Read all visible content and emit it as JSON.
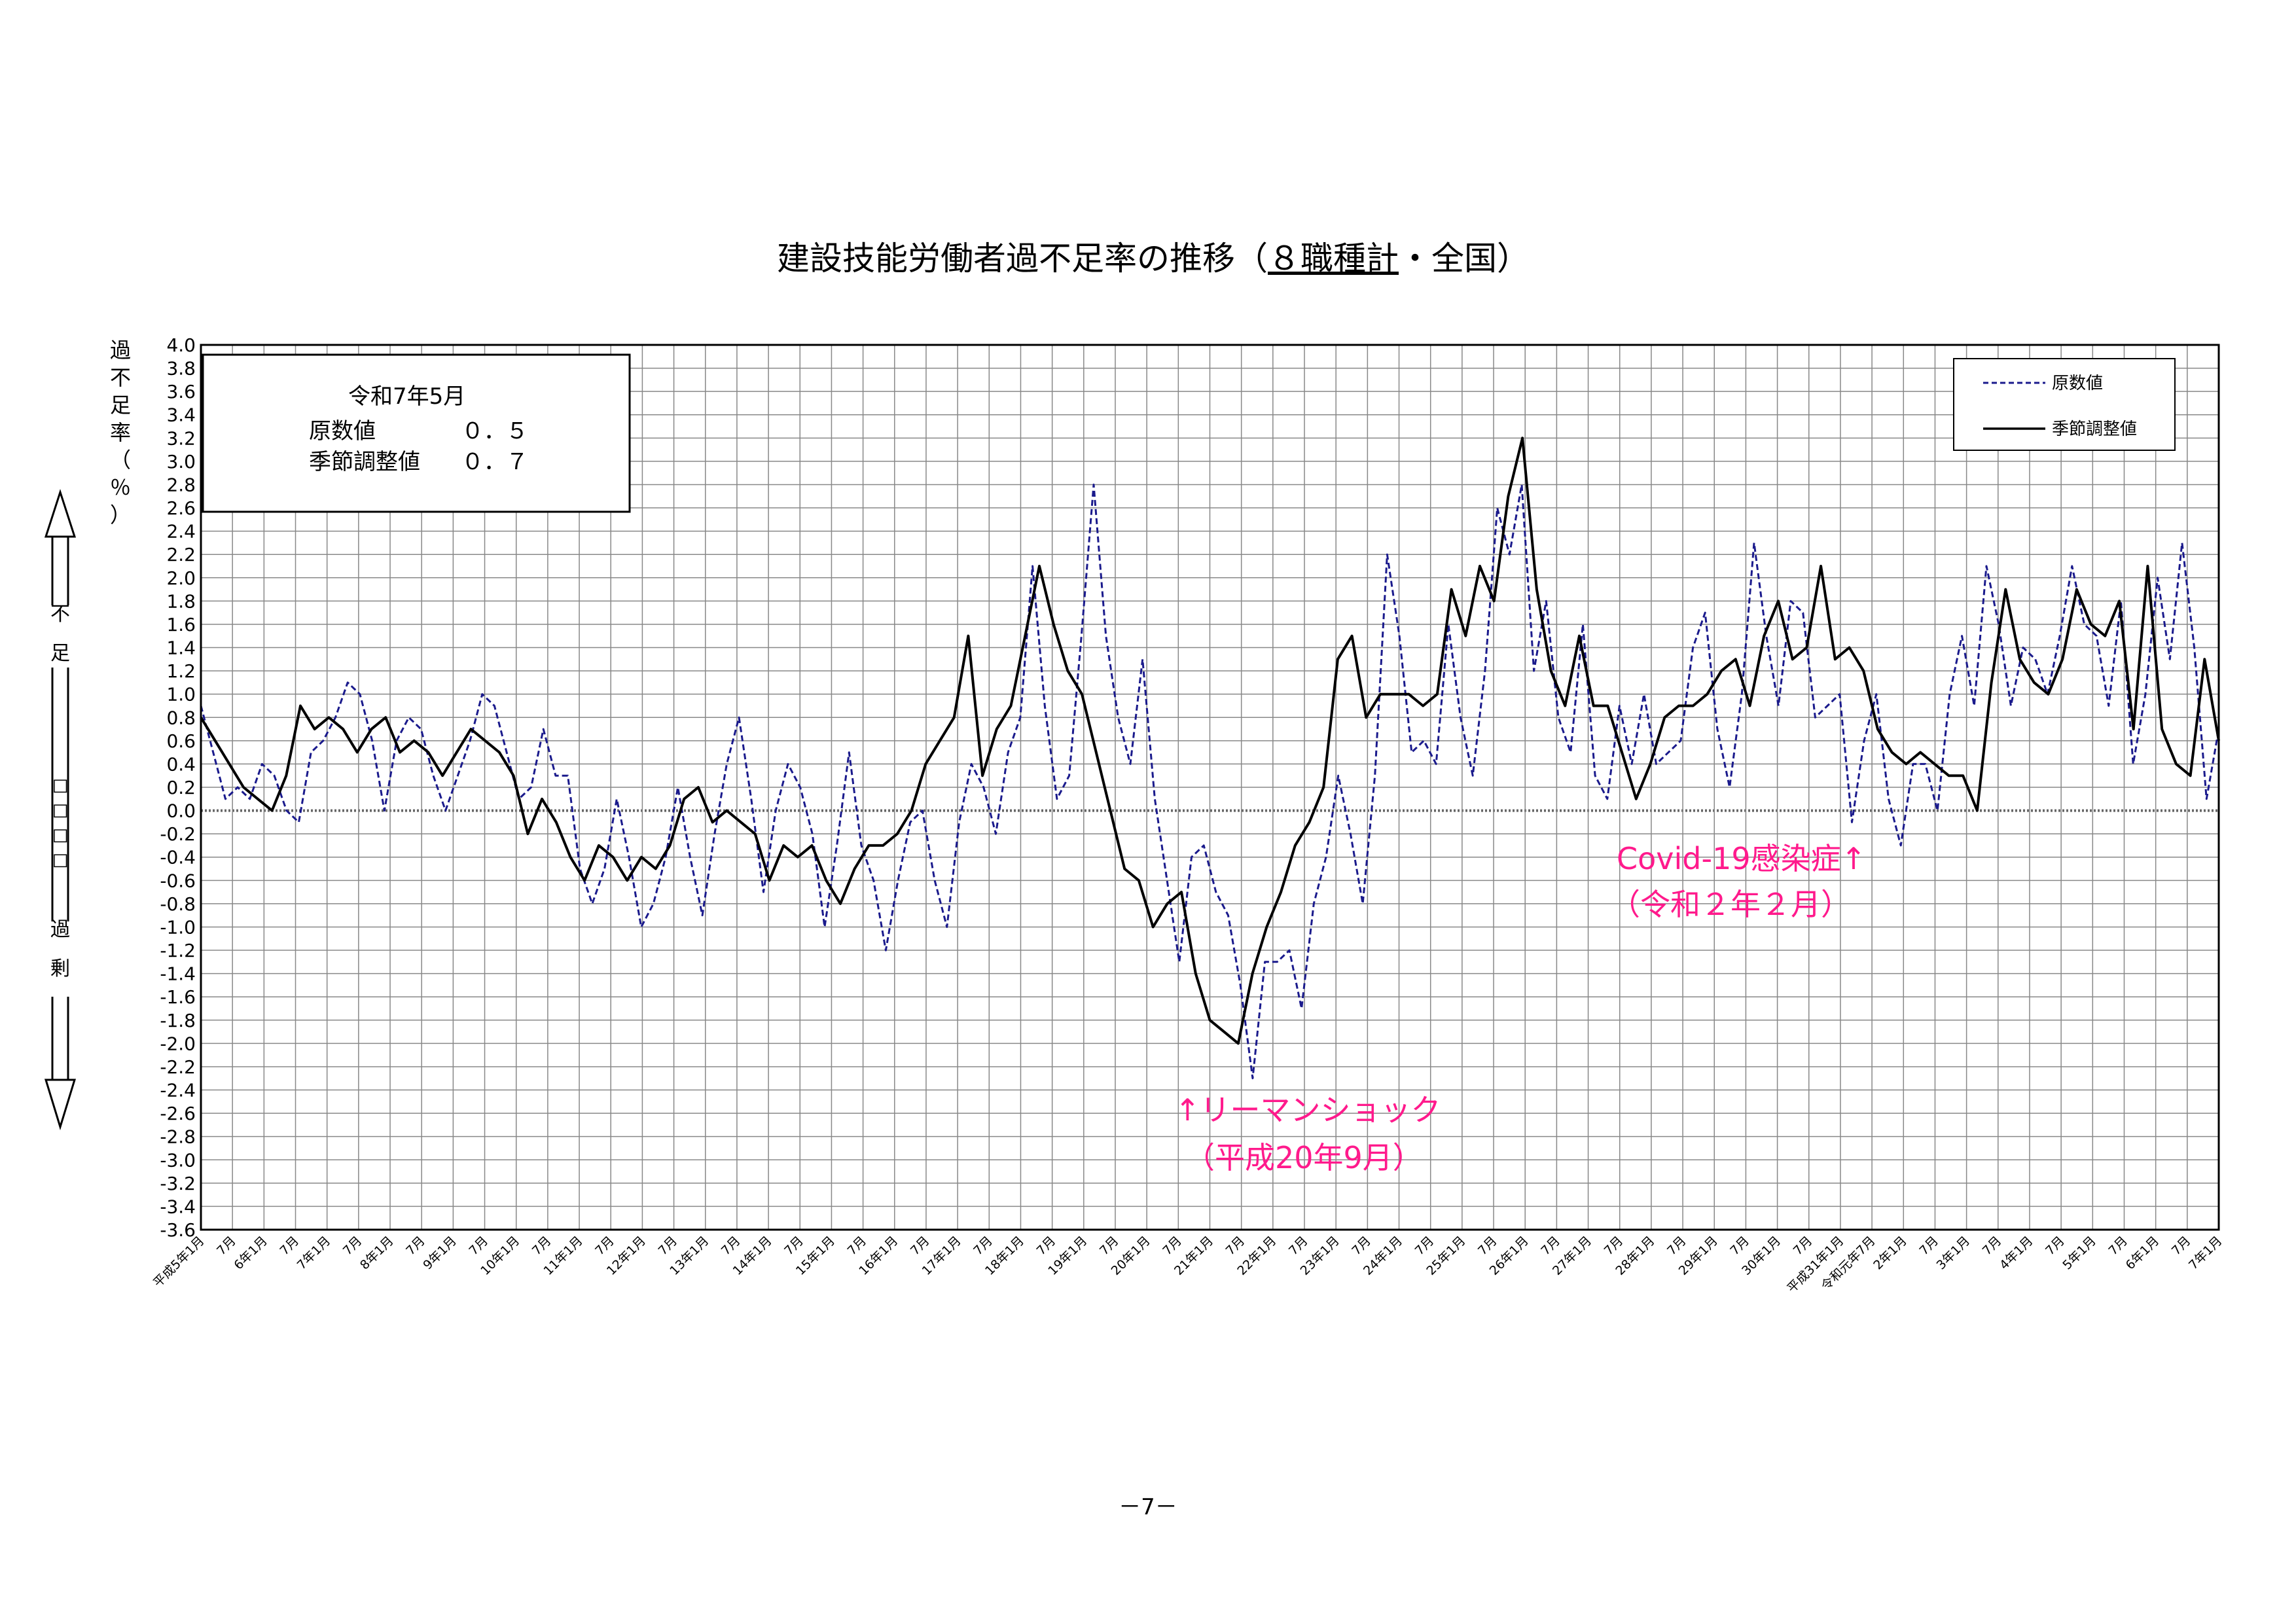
{
  "chart_data": {
    "type": "line",
    "title_prefix": "建設技能労働者過不足率の推移（",
    "title_underlined": "８職種計",
    "title_suffix": "・全国）",
    "ylabel": "過不足率（％）",
    "ylim": [
      -3.6,
      4.0
    ],
    "ytick_step": 0.2,
    "grid": true,
    "legend_position": "top-right",
    "side_label_top": "不足",
    "side_label_mid": "□□□□",
    "side_label_bottom": "過剰",
    "info_box": {
      "line1": "令和7年5月",
      "raw_label": "原数値",
      "raw_value": "０．５",
      "sa_label": "季節調整値",
      "sa_value": "０．７"
    },
    "annotations": {
      "lehman_line1": "↑リーマンショック",
      "lehman_line2": "（平成20年9月）",
      "covid_line1": "Covid-19感染症↑",
      "covid_line2": "（令和２年２月）"
    },
    "x_tick_labels": [
      "平成5年1月",
      "7月",
      "6年1月",
      "7月",
      "7年1月",
      "7月",
      "8年1月",
      "7月",
      "9年1月",
      "7月",
      "10年1月",
      "7月",
      "11年1月",
      "7月",
      "12年1月",
      "7月",
      "13年1月",
      "7月",
      "14年1月",
      "7月",
      "15年1月",
      "7月",
      "16年1月",
      "7月",
      "17年1月",
      "7月",
      "18年1月",
      "7月",
      "19年1月",
      "7月",
      "20年1月",
      "7月",
      "21年1月",
      "7月",
      "22年1月",
      "7月",
      "23年1月",
      "7月",
      "24年1月",
      "7月",
      "25年1月",
      "7月",
      "26年1月",
      "7月",
      "27年1月",
      "7月",
      "28年1月",
      "7月",
      "29年1月",
      "7月",
      "30年1月",
      "7月",
      "平成31年1月",
      "令和元年7月",
      "2年1月",
      "7月",
      "3年1月",
      "7月",
      "4年1月",
      "7月",
      "5年1月",
      "7月",
      "6年1月",
      "7月",
      "7年1月"
    ],
    "series": [
      {
        "name": "原数値",
        "color": "#1a1a8c",
        "style": "dashed",
        "anchors": [
          0.9,
          0.5,
          0.1,
          0.2,
          0.1,
          0.4,
          0.3,
          0.0,
          -0.1,
          0.5,
          0.6,
          0.8,
          1.1,
          1.0,
          0.6,
          0.0,
          0.6,
          0.8,
          0.7,
          0.3,
          0.0,
          0.3,
          0.6,
          1.0,
          0.9,
          0.5,
          0.1,
          0.2,
          0.7,
          0.3,
          0.3,
          -0.5,
          -0.8,
          -0.5,
          0.1,
          -0.4,
          -1.0,
          -0.8,
          -0.4,
          0.2,
          -0.4,
          -0.9,
          -0.2,
          0.4,
          0.8,
          0.1,
          -0.7,
          0.0,
          0.4,
          0.2,
          -0.2,
          -1.0,
          -0.3,
          0.5,
          -0.3,
          -0.6,
          -1.2,
          -0.6,
          -0.1,
          0.0,
          -0.6,
          -1.0,
          -0.1,
          0.4,
          0.2,
          -0.2,
          0.5,
          0.8,
          2.1,
          0.9,
          0.1,
          0.3,
          1.5,
          2.8,
          1.5,
          0.8,
          0.4,
          1.3,
          0.1,
          -0.6,
          -1.3,
          -0.4,
          -0.3,
          -0.7,
          -0.9,
          -1.5,
          -2.3,
          -1.3,
          -1.3,
          -1.2,
          -1.7,
          -0.8,
          -0.4,
          0.3,
          -0.2,
          -0.8,
          0.3,
          2.2,
          1.5,
          0.5,
          0.6,
          0.4,
          1.6,
          0.8,
          0.3,
          1.2,
          2.6,
          2.2,
          2.8,
          1.2,
          1.8,
          0.8,
          0.5,
          1.6,
          0.3,
          0.1,
          0.9,
          0.4,
          1.0,
          0.4,
          0.5,
          0.6,
          1.4,
          1.7,
          0.7,
          0.2,
          1.0,
          2.3,
          1.5,
          0.9,
          1.8,
          1.7,
          0.8,
          0.9,
          1.0,
          -0.1,
          0.6,
          1.0,
          0.1,
          -0.3,
          0.4,
          0.4,
          0.0,
          1.0,
          1.5,
          0.9,
          2.1,
          1.6,
          0.9,
          1.4,
          1.3,
          1.0,
          1.5,
          2.1,
          1.6,
          1.5,
          0.9,
          1.8,
          0.4,
          1.0,
          2.0,
          1.3,
          2.3,
          1.4,
          0.1,
          0.7
        ],
        "note": "原数値 (raw values, approx. monthly samples read from chart)"
      },
      {
        "name": "季節調整値",
        "color": "#000000",
        "style": "solid",
        "anchors": [
          0.8,
          0.6,
          0.4,
          0.2,
          0.1,
          0.0,
          0.3,
          0.9,
          0.7,
          0.8,
          0.7,
          0.5,
          0.7,
          0.8,
          0.5,
          0.6,
          0.5,
          0.3,
          0.5,
          0.7,
          0.6,
          0.5,
          0.3,
          -0.2,
          0.1,
          -0.1,
          -0.4,
          -0.6,
          -0.3,
          -0.4,
          -0.6,
          -0.4,
          -0.5,
          -0.3,
          0.1,
          0.2,
          -0.1,
          0.0,
          -0.1,
          -0.2,
          -0.6,
          -0.3,
          -0.4,
          -0.3,
          -0.6,
          -0.8,
          -0.5,
          -0.3,
          -0.3,
          -0.2,
          0.0,
          0.4,
          0.6,
          0.8,
          1.5,
          0.3,
          0.7,
          0.9,
          1.5,
          2.1,
          1.6,
          1.2,
          1.0,
          0.5,
          0.0,
          -0.5,
          -0.6,
          -1.0,
          -0.8,
          -0.7,
          -1.4,
          -1.8,
          -1.9,
          -2.0,
          -1.4,
          -1.0,
          -0.7,
          -0.3,
          -0.1,
          0.2,
          1.3,
          1.5,
          0.8,
          1.0,
          1.0,
          1.0,
          0.9,
          1.0,
          1.9,
          1.5,
          2.1,
          1.8,
          2.7,
          3.2,
          1.9,
          1.2,
          0.9,
          1.5,
          0.9,
          0.9,
          0.5,
          0.1,
          0.4,
          0.8,
          0.9,
          0.9,
          1.0,
          1.2,
          1.3,
          0.9,
          1.5,
          1.8,
          1.3,
          1.4,
          2.1,
          1.3,
          1.4,
          1.2,
          0.7,
          0.5,
          0.4,
          0.5,
          0.4,
          0.3,
          0.3,
          0.0,
          1.1,
          1.9,
          1.3,
          1.1,
          1.0,
          1.3,
          1.9,
          1.6,
          1.5,
          1.8,
          0.7,
          2.1,
          0.7,
          0.4,
          0.3,
          1.3,
          0.6
        ],
        "note": "季節調整値 (seasonally adjusted, approx. read from chart)"
      }
    ],
    "legend": [
      "原数値",
      "季節調整値"
    ]
  },
  "page": {
    "number": "－7－"
  }
}
